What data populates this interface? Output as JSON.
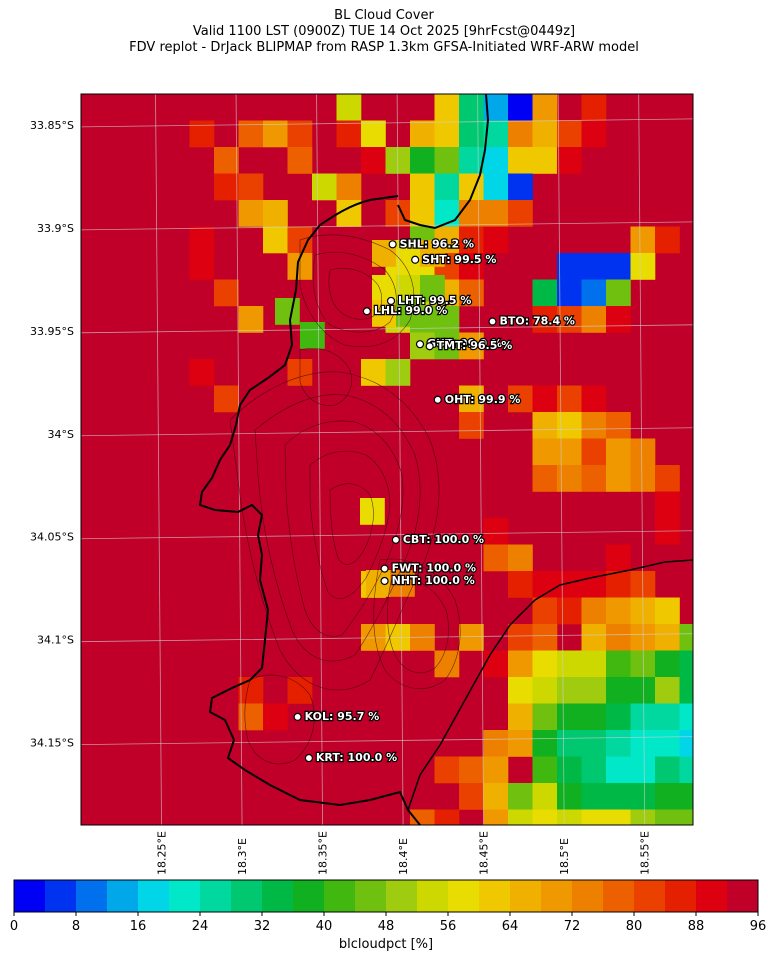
{
  "title": {
    "line1": "BL Cloud Cover",
    "line2": "Valid 1100 LST (0900Z) TUE 14 Oct 2025 [9hrFcst@0449z]",
    "line3": "FDV replot - DrJack BLIPMAP from RASP 1.3km GFSA-Initiated WRF-ARW model"
  },
  "map": {
    "lon_range": [
      18.2,
      18.58
    ],
    "lat_range": [
      -34.19,
      -33.835
    ],
    "lat_ticks": [
      {
        "lat": -33.85,
        "label": "33.85°S"
      },
      {
        "lat": -33.9,
        "label": "33.9°S"
      },
      {
        "lat": -33.95,
        "label": "33.95°S"
      },
      {
        "lat": -34.0,
        "label": "34°S"
      },
      {
        "lat": -34.05,
        "label": "34.05°S"
      },
      {
        "lat": -34.1,
        "label": "34.1°S"
      },
      {
        "lat": -34.15,
        "label": "34.15°S"
      }
    ],
    "lon_ticks": [
      {
        "lon": 18.25,
        "label": "18.25°E"
      },
      {
        "lon": 18.3,
        "label": "18.3°E"
      },
      {
        "lon": 18.35,
        "label": "18.35°E"
      },
      {
        "lon": 18.4,
        "label": "18.4°E"
      },
      {
        "lon": 18.45,
        "label": "18.45°E"
      },
      {
        "lon": 18.5,
        "label": "18.5°E"
      },
      {
        "lon": 18.55,
        "label": "18.55°E"
      }
    ],
    "background_value": 99
  },
  "stations": [
    {
      "code": "SHL",
      "label": "SHL: 96.2 %",
      "lon": 18.3935,
      "lat": -33.908
    },
    {
      "code": "SHT",
      "label": "SHT: 99.5 %",
      "lon": 18.4075,
      "lat": -33.9155
    },
    {
      "code": "LHT",
      "label": "LHT: 99.5 %",
      "lon": 18.3925,
      "lat": -33.9355
    },
    {
      "code": "LHL",
      "label": "LHL: 99.0 %",
      "lon": 18.3775,
      "lat": -33.9405
    },
    {
      "code": "BTO",
      "label": "BTO: 78.4 %",
      "lon": 18.4555,
      "lat": -33.9455
    },
    {
      "code": "GUT",
      "label": "GUT: 99.9 %",
      "lon": 18.4105,
      "lat": -33.9565
    },
    {
      "code": "TMT",
      "label": "TMT: 96.5 %",
      "lon": 18.4165,
      "lat": -33.9575
    },
    {
      "code": "OHT",
      "label": "OHT: 99.9 %",
      "lon": 18.4215,
      "lat": -33.9835
    },
    {
      "code": "CBT",
      "label": "CBT: 100.0 %",
      "lon": 18.3955,
      "lat": -34.0515
    },
    {
      "code": "FWT",
      "label": "FWT: 100.0 %",
      "lon": 18.3885,
      "lat": -34.0655
    },
    {
      "code": "NHT",
      "label": "NHT: 100.0 %",
      "lon": 18.3885,
      "lat": -34.0715
    },
    {
      "code": "KOL",
      "label": "KOL: 95.7 %",
      "lon": 18.3345,
      "lat": -34.1375
    },
    {
      "code": "KRT",
      "label": "KRT: 100.0 %",
      "lon": 18.3415,
      "lat": -34.1575
    }
  ],
  "colorbar": {
    "label": "blcloudpct [%]",
    "ticks": [
      "0",
      "8",
      "16",
      "24",
      "32",
      "40",
      "48",
      "56",
      "64",
      "72",
      "80",
      "88",
      "96"
    ],
    "colors": [
      "#0000f5",
      "#0033f0",
      "#0070ec",
      "#00a8ea",
      "#00d6e8",
      "#00e8c8",
      "#00d8a0",
      "#00c870",
      "#00b845",
      "#10b020",
      "#40b810",
      "#70c010",
      "#a0cc10",
      "#ccd800",
      "#e8dc00",
      "#f0c800",
      "#f0b000",
      "#f09800",
      "#ee8000",
      "#ec6000",
      "#ea4000",
      "#e42000",
      "#dc0010",
      "#c00028"
    ]
  }
}
